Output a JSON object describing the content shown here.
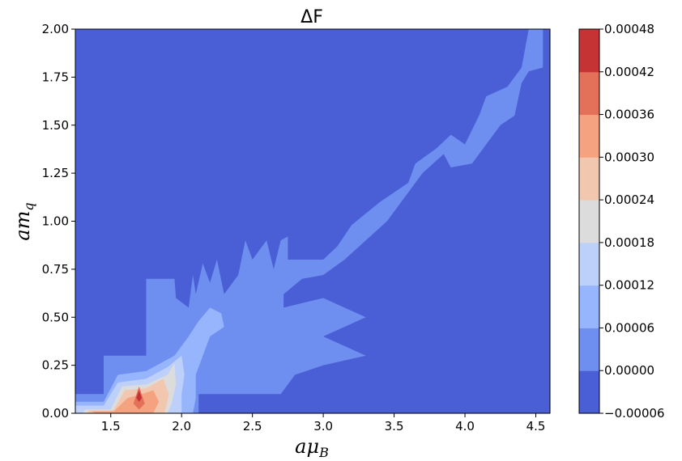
{
  "chart_data": {
    "type": "contour",
    "title": "ΔF",
    "xlabel": "aμ",
    "xlabel_sub": "B",
    "ylabel": "am",
    "ylabel_sub": "q",
    "xlim": [
      1.25,
      4.6
    ],
    "ylim": [
      0.0,
      2.0
    ],
    "xticks": [
      "1.5",
      "2.0",
      "2.5",
      "3.0",
      "3.5",
      "4.0",
      "4.5"
    ],
    "yticks": [
      "0.00",
      "0.25",
      "0.50",
      "0.75",
      "1.00",
      "1.25",
      "1.50",
      "1.75",
      "2.00"
    ],
    "colorbar": {
      "levels": [
        "−0.00006",
        "0.00000",
        "0.00006",
        "0.00012",
        "0.00018",
        "0.00024",
        "0.00030",
        "0.00036",
        "0.00042",
        "0.00048"
      ],
      "colors": [
        "#4a5fd5",
        "#6f8ff0",
        "#97b5fd",
        "#bcd0fa",
        "#dddcdc",
        "#f2c7b0",
        "#f4a280",
        "#e3715a",
        "#c53334"
      ]
    },
    "regions": [
      {
        "level": 1,
        "points": [
          [
            1.25,
            0.1
          ],
          [
            1.45,
            0.1
          ],
          [
            1.45,
            0.3
          ],
          [
            1.75,
            0.3
          ],
          [
            1.75,
            0.7
          ],
          [
            1.95,
            0.7
          ],
          [
            1.96,
            0.6
          ],
          [
            2.05,
            0.55
          ],
          [
            2.08,
            0.72
          ],
          [
            2.1,
            0.62
          ],
          [
            2.15,
            0.78
          ],
          [
            2.2,
            0.68
          ],
          [
            2.25,
            0.8
          ],
          [
            2.3,
            0.62
          ],
          [
            2.4,
            0.72
          ],
          [
            2.45,
            0.9
          ],
          [
            2.5,
            0.8
          ],
          [
            2.6,
            0.9
          ],
          [
            2.65,
            0.75
          ],
          [
            2.7,
            0.9
          ],
          [
            2.75,
            0.92
          ],
          [
            2.75,
            0.8
          ],
          [
            2.9,
            0.8
          ],
          [
            3.0,
            0.8
          ],
          [
            3.1,
            0.87
          ],
          [
            3.2,
            0.98
          ],
          [
            3.4,
            1.1
          ],
          [
            3.5,
            1.15
          ],
          [
            3.6,
            1.2
          ],
          [
            3.65,
            1.3
          ],
          [
            3.8,
            1.38
          ],
          [
            3.9,
            1.45
          ],
          [
            4.0,
            1.4
          ],
          [
            4.1,
            1.55
          ],
          [
            4.15,
            1.65
          ],
          [
            4.3,
            1.7
          ],
          [
            4.4,
            1.8
          ],
          [
            4.45,
            2.0
          ],
          [
            4.55,
            2.0
          ],
          [
            4.55,
            1.8
          ],
          [
            4.45,
            1.78
          ],
          [
            4.4,
            1.72
          ],
          [
            4.35,
            1.55
          ],
          [
            4.25,
            1.5
          ],
          [
            4.15,
            1.4
          ],
          [
            4.05,
            1.3
          ],
          [
            3.9,
            1.28
          ],
          [
            3.85,
            1.35
          ],
          [
            3.7,
            1.25
          ],
          [
            3.55,
            1.1
          ],
          [
            3.45,
            1.0
          ],
          [
            3.3,
            0.9
          ],
          [
            3.15,
            0.8
          ],
          [
            3.0,
            0.72
          ],
          [
            2.85,
            0.7
          ],
          [
            2.72,
            0.62
          ],
          [
            2.72,
            0.55
          ],
          [
            3.0,
            0.6
          ],
          [
            3.3,
            0.5
          ],
          [
            3.0,
            0.4
          ],
          [
            3.3,
            0.3
          ],
          [
            3.0,
            0.25
          ],
          [
            2.8,
            0.2
          ],
          [
            2.7,
            0.1
          ],
          [
            2.4,
            0.1
          ],
          [
            2.12,
            0.1
          ],
          [
            2.12,
            0.0
          ],
          [
            1.25,
            0.0
          ]
        ]
      },
      {
        "level": 2,
        "points": [
          [
            1.25,
            0.06
          ],
          [
            1.45,
            0.06
          ],
          [
            1.55,
            0.2
          ],
          [
            1.75,
            0.22
          ],
          [
            1.95,
            0.3
          ],
          [
            2.05,
            0.4
          ],
          [
            2.12,
            0.48
          ],
          [
            2.2,
            0.55
          ],
          [
            2.28,
            0.52
          ],
          [
            2.3,
            0.45
          ],
          [
            2.2,
            0.4
          ],
          [
            2.15,
            0.3
          ],
          [
            2.1,
            0.2
          ],
          [
            2.1,
            0.08
          ],
          [
            2.08,
            0.0
          ],
          [
            1.25,
            0.0
          ]
        ]
      },
      {
        "level": 3,
        "points": [
          [
            1.25,
            0.04
          ],
          [
            1.45,
            0.04
          ],
          [
            1.55,
            0.16
          ],
          [
            1.75,
            0.18
          ],
          [
            1.9,
            0.24
          ],
          [
            2.0,
            0.3
          ],
          [
            2.02,
            0.2
          ],
          [
            2.0,
            0.1
          ],
          [
            2.0,
            0.0
          ],
          [
            1.25,
            0.0
          ]
        ]
      },
      {
        "level": 4,
        "points": [
          [
            1.32,
            0.02
          ],
          [
            1.5,
            0.02
          ],
          [
            1.58,
            0.14
          ],
          [
            1.75,
            0.15
          ],
          [
            1.9,
            0.2
          ],
          [
            1.95,
            0.26
          ],
          [
            1.96,
            0.15
          ],
          [
            1.93,
            0.05
          ],
          [
            1.9,
            0.0
          ],
          [
            1.3,
            0.0
          ]
        ]
      },
      {
        "level": 5,
        "points": [
          [
            1.34,
            0.015
          ],
          [
            1.52,
            0.015
          ],
          [
            1.6,
            0.12
          ],
          [
            1.75,
            0.13
          ],
          [
            1.87,
            0.18
          ],
          [
            1.91,
            0.1
          ],
          [
            1.88,
            0.0
          ],
          [
            1.34,
            0.0
          ]
        ]
      },
      {
        "level": 6,
        "points": [
          [
            1.36,
            0.01
          ],
          [
            1.52,
            0.01
          ],
          [
            1.62,
            0.08
          ],
          [
            1.72,
            0.1
          ],
          [
            1.8,
            0.12
          ],
          [
            1.84,
            0.06
          ],
          [
            1.8,
            0.0
          ],
          [
            1.4,
            0.0
          ]
        ]
      },
      {
        "level": 7,
        "points": [
          [
            1.66,
            0.05
          ],
          [
            1.7,
            0.14
          ],
          [
            1.74,
            0.05
          ],
          [
            1.7,
            0.02
          ]
        ]
      },
      {
        "level": 8,
        "points": [
          [
            1.68,
            0.08
          ],
          [
            1.7,
            0.12
          ],
          [
            1.72,
            0.08
          ],
          [
            1.7,
            0.06
          ]
        ]
      }
    ]
  }
}
